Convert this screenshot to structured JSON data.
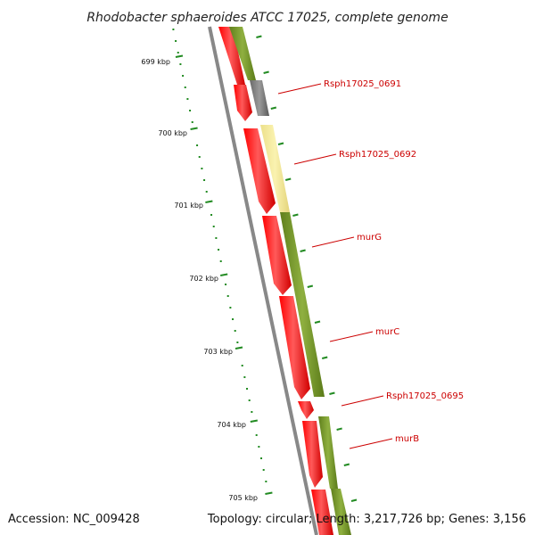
{
  "title": "Rhodobacter sphaeroides ATCC 17025, complete genome",
  "ticks": [
    "699 kbp",
    "700 kbp",
    "701 kbp",
    "702 kbp",
    "703 kbp",
    "704 kbp",
    "705 kbp"
  ],
  "gene_labels": [
    "Rsph17025_0691",
    "Rsph17025_0692",
    "murG",
    "murC",
    "Rsph17025_0695",
    "murB"
  ],
  "footer": {
    "accession": "Accession: NC_009428",
    "topology": "Topology: circular; Length: 3,217,726 bp; Genes: 3,156"
  },
  "colors": {
    "cds_red": "#ff0000",
    "gene_olive": "#6b8e23",
    "gene_gray": "#808080",
    "gene_pale": "#f0e68c",
    "label_red": "#cc0000",
    "tick_green": "#228b22",
    "backbone": "#888888"
  }
}
